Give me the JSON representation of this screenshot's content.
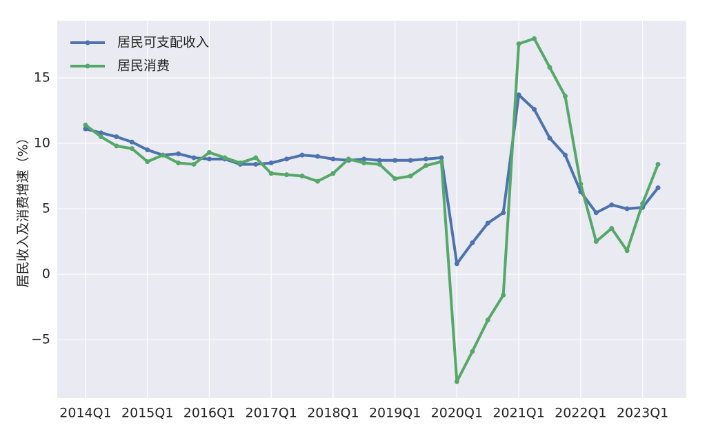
{
  "chart_data": {
    "type": "line",
    "ylabel": "居民收入及消费增速（%）",
    "categories": [
      "2014Q1",
      null,
      null,
      null,
      "2015Q1",
      null,
      null,
      null,
      "2016Q1",
      null,
      null,
      null,
      "2017Q1",
      null,
      null,
      null,
      "2018Q1",
      null,
      null,
      null,
      "2019Q1",
      null,
      null,
      null,
      "2020Q1",
      null,
      null,
      null,
      "2021Q1",
      null,
      null,
      null,
      "2022Q1",
      null,
      null,
      null,
      "2023Q1",
      null
    ],
    "series": [
      {
        "name": "居民可支配收入",
        "color": "#4c72b0",
        "values": [
          11.1,
          10.8,
          10.5,
          10.1,
          9.5,
          9.1,
          9.2,
          8.9,
          8.8,
          8.8,
          8.4,
          8.4,
          8.5,
          8.8,
          9.1,
          9.0,
          8.8,
          8.7,
          8.8,
          8.7,
          8.7,
          8.7,
          8.8,
          8.9,
          0.8,
          2.4,
          3.9,
          4.7,
          13.7,
          12.6,
          10.4,
          9.1,
          6.3,
          4.7,
          5.3,
          5.0,
          5.1,
          6.6
        ]
      },
      {
        "name": "居民消费",
        "color": "#55a868",
        "values": [
          11.4,
          10.5,
          9.8,
          9.6,
          8.6,
          9.1,
          8.5,
          8.4,
          9.3,
          8.9,
          8.5,
          8.9,
          7.7,
          7.6,
          7.5,
          7.1,
          7.7,
          8.8,
          8.5,
          8.4,
          7.3,
          7.5,
          8.3,
          8.6,
          -8.2,
          -5.9,
          -3.5,
          -1.6,
          17.6,
          18.0,
          15.8,
          13.6,
          6.9,
          2.5,
          3.5,
          1.8,
          5.4,
          8.4
        ]
      }
    ],
    "ylim": [
      -9.47,
      19.37
    ],
    "yticks": [
      {
        "value": -5,
        "label": "−5"
      },
      0,
      5,
      10,
      15
    ],
    "grid": true,
    "legend": "upper left"
  }
}
